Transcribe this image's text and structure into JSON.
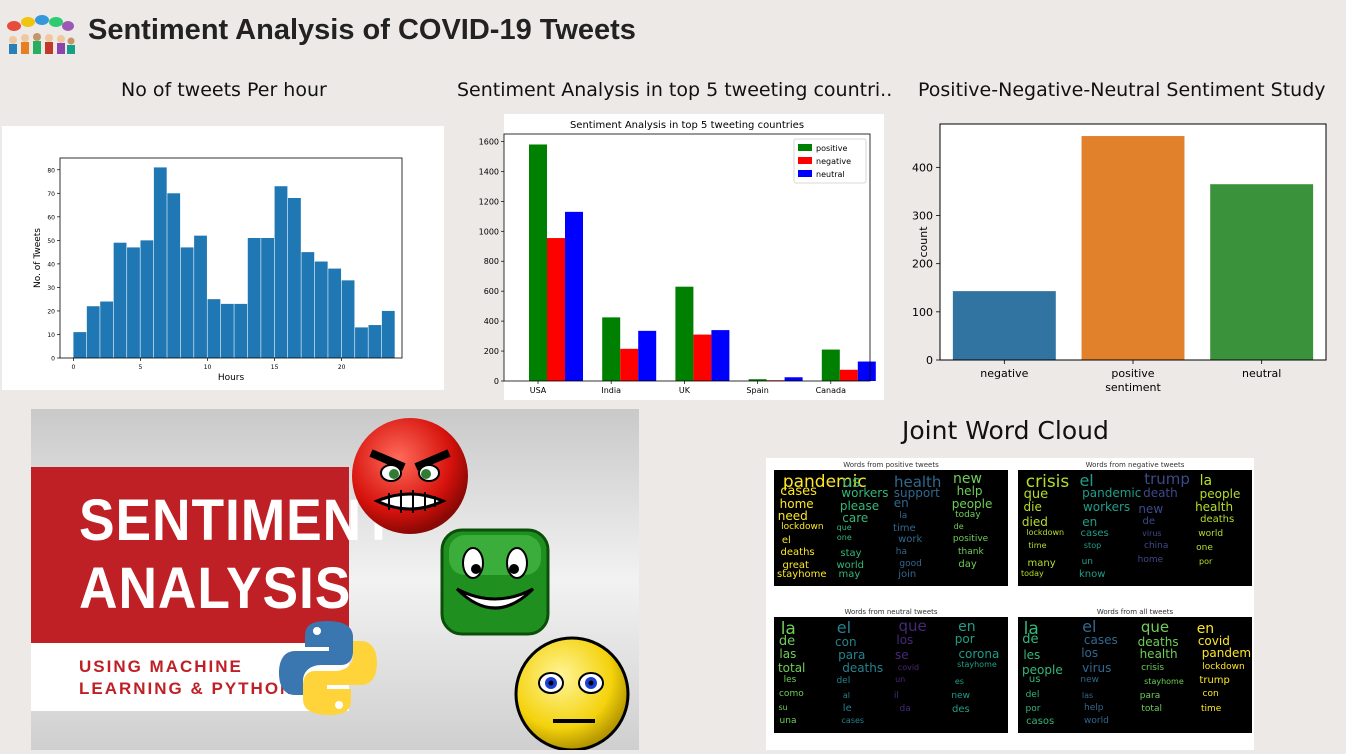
{
  "header": {
    "title": "Sentiment Analysis of COVID-19 Tweets",
    "logo_icon": "people-speech-bubbles-icon"
  },
  "subtitles": {
    "hours": "No of tweets Per hour",
    "countries": "Sentiment Analysis in top 5 tweeting countri..",
    "sentiment": "Positive-Negative-Neutral Sentiment Study",
    "wordcloud": "Joint Word Cloud"
  },
  "banner": {
    "line1": "SENTIMENT",
    "line2": "ANALYSIS",
    "line3": "USING MACHINE",
    "line4": "LEARNING & PYTHON",
    "icons": [
      "angry-face-icon",
      "smiling-face-icon",
      "neutral-face-icon",
      "python-logo-icon"
    ]
  },
  "chart_data": [
    {
      "type": "bar",
      "xlabel": "Hours",
      "ylabel": "No. of Tweets",
      "xlim": [
        -1,
        24.5
      ],
      "ylim": [
        0,
        85
      ],
      "xticks": [
        0,
        5,
        10,
        15,
        20
      ],
      "yticks": [
        0,
        10,
        20,
        30,
        40,
        50,
        60,
        70,
        80
      ],
      "bin_edges": [
        0,
        1,
        2,
        3,
        4,
        5,
        6,
        7,
        8,
        9,
        10,
        11,
        12,
        13,
        14,
        15,
        16,
        17,
        18,
        19,
        20,
        21,
        22,
        23,
        24
      ],
      "values": [
        11,
        22,
        24,
        49,
        47,
        50,
        81,
        70,
        47,
        52,
        25,
        23,
        23,
        51,
        51,
        73,
        68,
        45,
        41,
        38,
        33,
        13,
        14,
        20
      ],
      "color": "#1f77b4"
    },
    {
      "type": "bar",
      "title": "Sentiment Analysis in top 5 tweeting countries",
      "categories": [
        "USA",
        "India",
        "UK",
        "Spain",
        "Canada"
      ],
      "series": [
        {
          "name": "positive",
          "values": [
            1580,
            425,
            630,
            12,
            210
          ],
          "color": "#008000"
        },
        {
          "name": "negative",
          "values": [
            955,
            215,
            310,
            5,
            75
          ],
          "color": "#ff0000"
        },
        {
          "name": "neutral",
          "values": [
            1130,
            335,
            340,
            25,
            130
          ],
          "color": "#0000ff"
        }
      ],
      "ylim": [
        0,
        1650
      ],
      "yticks": [
        0,
        200,
        400,
        600,
        800,
        1000,
        1200,
        1400,
        1600
      ],
      "legend": "top-right"
    },
    {
      "type": "bar",
      "categories": [
        "negative",
        "positive",
        "neutral"
      ],
      "values": [
        143,
        465,
        365
      ],
      "colors": [
        "#3274a1",
        "#e1812c",
        "#3a923a"
      ],
      "xlabel": "sentiment",
      "ylabel": "count",
      "ylim": [
        0,
        490
      ],
      "yticks": [
        0,
        100,
        200,
        300,
        400
      ]
    }
  ],
  "wordclouds": [
    {
      "title": "Words from positive tweets",
      "words": [
        "pandemic",
        "us",
        "health",
        "new",
        "cases",
        "workers",
        "support",
        "help",
        "home",
        "please",
        "en",
        "people",
        "need",
        "care",
        "la",
        "today",
        "lockdown",
        "que",
        "time",
        "de",
        "el",
        "one",
        "work",
        "positive",
        "deaths",
        "stay",
        "ha",
        "thank",
        "great",
        "world",
        "good",
        "day",
        "stayhome",
        "may",
        "join"
      ]
    },
    {
      "title": "Words from negative tweets",
      "words": [
        "crisis",
        "el",
        "trump",
        "la",
        "que",
        "pandemic",
        "death",
        "people",
        "die",
        "workers",
        "new",
        "health",
        "died",
        "en",
        "de",
        "deaths",
        "lockdown",
        "cases",
        "virus",
        "world",
        "time",
        "stop",
        "china",
        "one",
        "many",
        "un",
        "home",
        "por",
        "today",
        "know"
      ]
    },
    {
      "title": "Words from neutral tweets",
      "words": [
        "la",
        "el",
        "que",
        "en",
        "de",
        "con",
        "los",
        "por",
        "las",
        "para",
        "se",
        "corona",
        "total",
        "deaths",
        "covid",
        "stayhome",
        "les",
        "del",
        "un",
        "es",
        "como",
        "al",
        "il",
        "new",
        "su",
        "le",
        "da",
        "des",
        "una",
        "cases"
      ]
    },
    {
      "title": "Words from all tweets",
      "words": [
        "la",
        "el",
        "que",
        "en",
        "de",
        "cases",
        "deaths",
        "covid",
        "les",
        "los",
        "health",
        "pandemic",
        "people",
        "virus",
        "crisis",
        "lockdown",
        "us",
        "new",
        "stayhome",
        "trump",
        "del",
        "las",
        "para",
        "con",
        "por",
        "help",
        "total",
        "time",
        "casos",
        "world"
      ]
    }
  ]
}
